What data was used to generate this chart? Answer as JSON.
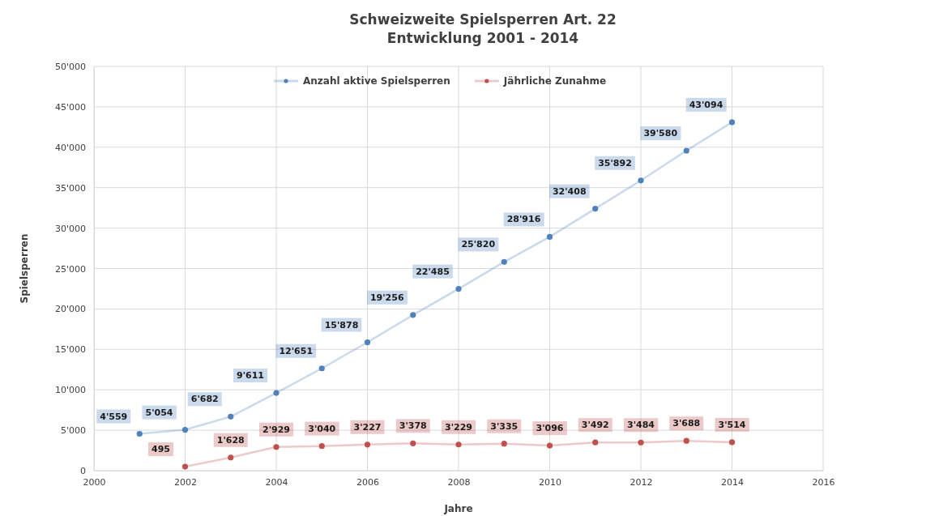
{
  "chart_data": {
    "type": "line",
    "title": "Schweizweite Spielsperren Art. 22",
    "subtitle": "Entwicklung 2001 - 2014",
    "xlabel": "Jahre",
    "ylabel": "Spielsperren",
    "xlim": [
      2000,
      2016
    ],
    "xticks": [
      2000,
      2002,
      2004,
      2006,
      2008,
      2010,
      2012,
      2014,
      2016
    ],
    "ylim": [
      0,
      50000
    ],
    "yticks": [
      0,
      {
        "value": 5000,
        "label": "5'000"
      },
      {
        "value": 10000,
        "label": "10'000"
      },
      {
        "value": 15000,
        "label": "15'000"
      },
      {
        "value": 20000,
        "label": "20'000"
      },
      {
        "value": 25000,
        "label": "25'000"
      },
      {
        "value": 30000,
        "label": "30'000"
      },
      {
        "value": 35000,
        "label": "35'000"
      },
      {
        "value": 40000,
        "label": "40'000"
      },
      {
        "value": 45000,
        "label": "45'000"
      },
      {
        "value": 50000,
        "label": "50'000"
      }
    ],
    "grid": true,
    "legend": "top",
    "marker": "circle",
    "line_style": "solid",
    "series": [
      {
        "name": "Anzahl aktive Spielsperren",
        "color": "#4f81bd",
        "x": [
          2001,
          2002,
          2003,
          2004,
          2005,
          2006,
          2007,
          2008,
          2009,
          2010,
          2011,
          2012,
          2013,
          2014
        ],
        "values": [
          4559,
          5054,
          6682,
          9611,
          12651,
          15878,
          19256,
          22485,
          25820,
          28916,
          32408,
          35892,
          39580,
          43094
        ],
        "value_labels": [
          "4'559",
          "5'054",
          "6'682",
          "9'611",
          "12'651",
          "15'878",
          "19'256",
          "22'485",
          "25'820",
          "28'916",
          "32'408",
          "35'892",
          "39'580",
          "43'094"
        ]
      },
      {
        "name": "Jährliche Zunahme",
        "color": "#c0504d",
        "x": [
          2002,
          2003,
          2004,
          2005,
          2006,
          2007,
          2008,
          2009,
          2010,
          2011,
          2012,
          2013,
          2014
        ],
        "values": [
          495,
          1628,
          2929,
          3040,
          3227,
          3378,
          3229,
          3335,
          3096,
          3492,
          3484,
          3688,
          3514
        ],
        "value_labels": [
          "495",
          "1'628",
          "2'929",
          "3'040",
          "3'227",
          "3'378",
          "3'229",
          "3'335",
          "3'096",
          "3'492",
          "3'484",
          "3'688",
          "3'514"
        ]
      }
    ]
  }
}
